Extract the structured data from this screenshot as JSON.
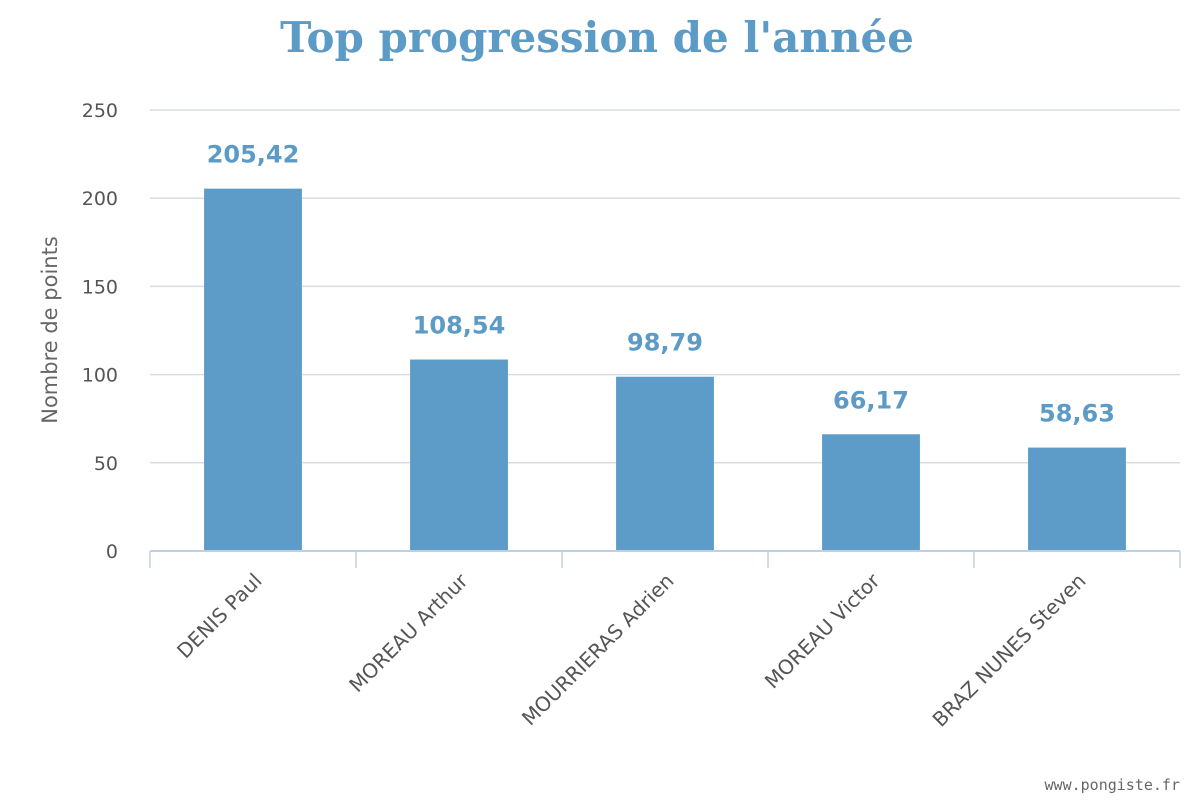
{
  "colors": {
    "bar": "#5d9cc8",
    "title": "#5c9bc6",
    "data_label": "#5c9bc6",
    "grid": "#d9dde3",
    "axis": "#c0d0e0",
    "text": "#555555"
  },
  "credit": "www.pongiste.fr",
  "chart_data": {
    "type": "bar",
    "title": "Top progression de l'année",
    "xlabel": "",
    "ylabel": "Nombre de points",
    "categories": [
      "DENIS Paul",
      "MOREAU Arthur",
      "MOURRIERAS Adrien",
      "MOREAU Victor",
      "BRAZ NUNES Steven"
    ],
    "values": [
      205.42,
      108.54,
      98.79,
      66.17,
      58.63
    ],
    "data_labels": [
      "205,42",
      "108,54",
      "98,79",
      "66,17",
      "58,63"
    ],
    "ylim": [
      0,
      250
    ],
    "yticks": [
      0,
      50,
      100,
      150,
      200,
      250
    ],
    "grid": true,
    "legend": "none"
  }
}
